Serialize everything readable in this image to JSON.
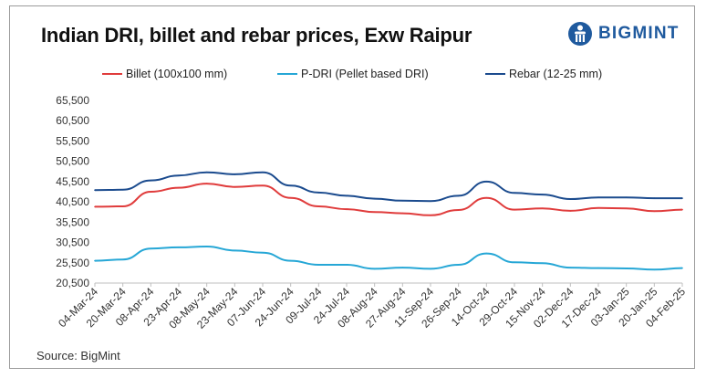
{
  "header": {
    "title": "Indian DRI, billet and rebar prices, Exw Raipur",
    "logo_text": "BIGMINT"
  },
  "source": "Source: BigMint",
  "colors": {
    "billet": "#e03c3c",
    "pdri": "#26a7d6",
    "rebar": "#1b4b8e",
    "logo": "#1f5a9e"
  },
  "chart_data": {
    "type": "line",
    "title": "Indian DRI, billet and rebar prices, Exw Raipur",
    "xlabel": "",
    "ylabel": "",
    "ylim": [
      20500,
      65500
    ],
    "y_ticks": [
      "65,500",
      "60,500",
      "55,500",
      "50,500",
      "45,500",
      "40,500",
      "35,500",
      "30,500",
      "25,500",
      "20,500"
    ],
    "y_tick_values": [
      65500,
      60500,
      55500,
      50500,
      45500,
      40500,
      35500,
      30500,
      25500,
      20500
    ],
    "categories": [
      "04-Mar-24",
      "20-Mar-24",
      "08-Apr-24",
      "23-Apr-24",
      "08-May-24",
      "23-May-24",
      "07-Jun-24",
      "24-Jun-24",
      "09-Jul-24",
      "24-Jul-24",
      "08-Aug-24",
      "27-Aug-24",
      "11-Sep-24",
      "26-Sep-24",
      "14-Oct-24",
      "29-Oct-24",
      "15-Nov-24",
      "02-Dec-24",
      "17-Dec-24",
      "03-Jan-25",
      "20-Jan-25",
      "04-Feb-25"
    ],
    "grid": false,
    "legend_position": "top",
    "series": [
      {
        "name": "Billet (100x100 mm)",
        "color": "#e03c3c",
        "values": [
          39300,
          39400,
          43000,
          44000,
          45000,
          44200,
          44500,
          41500,
          39400,
          38700,
          38000,
          37700,
          37200,
          38500,
          41500,
          38600,
          38900,
          38300,
          39000,
          38900,
          38200,
          38600
        ]
      },
      {
        "name": "P-DRI (Pellet based DRI)",
        "color": "#26a7d6",
        "values": [
          26000,
          26300,
          29000,
          29300,
          29500,
          28500,
          28000,
          26000,
          25000,
          25000,
          24000,
          24300,
          24000,
          25000,
          27800,
          25600,
          25400,
          24300,
          24200,
          24100,
          23800,
          24200
        ]
      },
      {
        "name": "Rebar (12-25 mm)",
        "color": "#1b4b8e",
        "values": [
          43400,
          43500,
          45800,
          47000,
          47800,
          47300,
          47800,
          44500,
          42800,
          42000,
          41300,
          40800,
          40700,
          42000,
          45500,
          42700,
          42300,
          41200,
          41600,
          41600,
          41400,
          41400
        ]
      }
    ]
  }
}
